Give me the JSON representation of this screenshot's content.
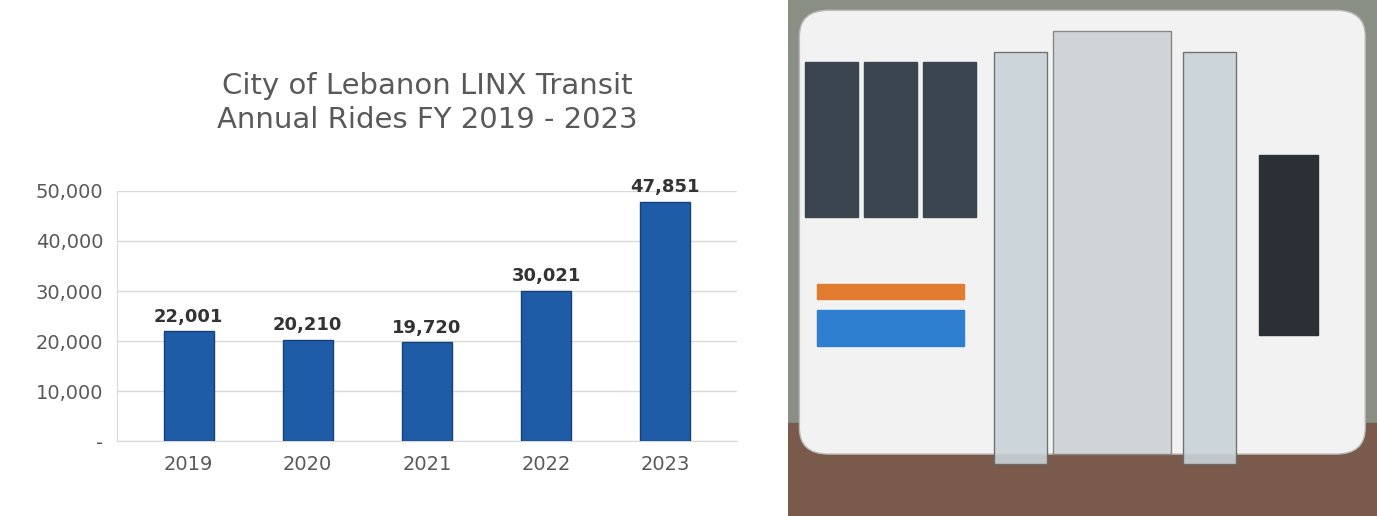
{
  "chart_data": {
    "type": "bar",
    "title": "City of Lebanon LINX Transit\nAnnual Rides FY 2019 - 2023",
    "categories": [
      "2019",
      "2020",
      "2021",
      "2022",
      "2023"
    ],
    "values": [
      22001,
      20210,
      19720,
      30021,
      47851
    ],
    "value_labels": [
      "22,001",
      "20,210",
      "19,720",
      "30,021",
      "47,851"
    ],
    "color": "#1f5ca8",
    "data_labels": true,
    "ylim": [
      0,
      50000
    ],
    "yticks": [
      {
        "value": 0,
        "label": "-"
      },
      {
        "value": 10000,
        "label": "10,000"
      },
      {
        "value": 20000,
        "label": "20,000"
      },
      {
        "value": 30000,
        "label": "30,000"
      },
      {
        "value": 40000,
        "label": "40,000"
      },
      {
        "value": 50000,
        "label": "50,000"
      }
    ],
    "grid": true
  }
}
